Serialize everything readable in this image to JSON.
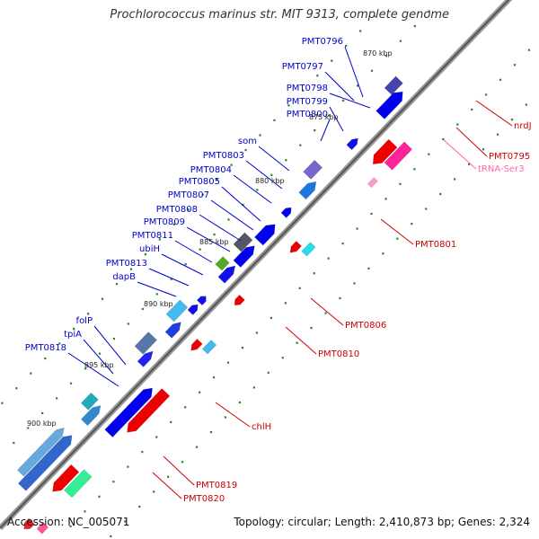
{
  "title": "Prochlorococcus marinus str. MIT 9313, complete genome",
  "footer": {
    "accession": "Accession: NC_005071",
    "summary": "Topology: circular; Length: 2,410,873 bp; Genes: 2,324"
  },
  "colors": {
    "forward": "#0000ee",
    "reverse": "#ee0000",
    "label_forward": "#0000cc",
    "label_reverse": "#cc0000",
    "trna": "#ff66aa",
    "backbone": "#888888",
    "dots": "#228822"
  },
  "kbp_marks": [
    "870 kbp",
    "875 kbp",
    "880 kbp",
    "885 kbp",
    "890 kbp",
    "895 kbp",
    "900 kbp"
  ],
  "forward_labels": [
    "PMT0796",
    "PMT0797",
    "PMT0798",
    "PMT0799",
    "PMT0800",
    "som",
    "PMT0803",
    "PMT0804",
    "PMT0805",
    "PMT0807",
    "PMT0808",
    "PMT0809",
    "PMT0811",
    "ubiH",
    "PMT0813",
    "dapB",
    "folP",
    "tpiA",
    "PMT0818"
  ],
  "reverse_labels": [
    "nrdJ",
    "PMT0795",
    "tRNA-Ser3",
    "PMT0801",
    "PMT0806",
    "PMT0810",
    "chlH",
    "PMT0819",
    "PMT0820"
  ]
}
